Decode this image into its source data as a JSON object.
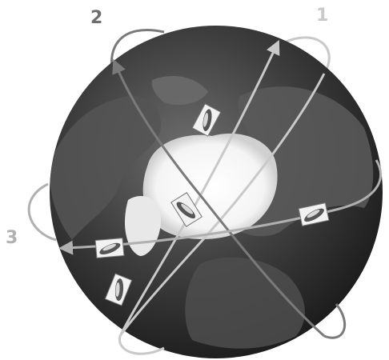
{
  "diagram": {
    "subject": "satellite-orbits-over-earth",
    "orbits": [
      {
        "label": "1",
        "color": "#c9c9c9"
      },
      {
        "label": "2",
        "color": "#7a7a7a"
      },
      {
        "label": "3",
        "color": "#b0b0b0"
      }
    ],
    "satellite_icon": "satellite-icon",
    "satellite_count": 5,
    "colors": {
      "globe_dark": "#2c2c2c",
      "globe_mid": "#5a5a5a",
      "ice": "#ffffff",
      "background": "#ffffff"
    }
  }
}
